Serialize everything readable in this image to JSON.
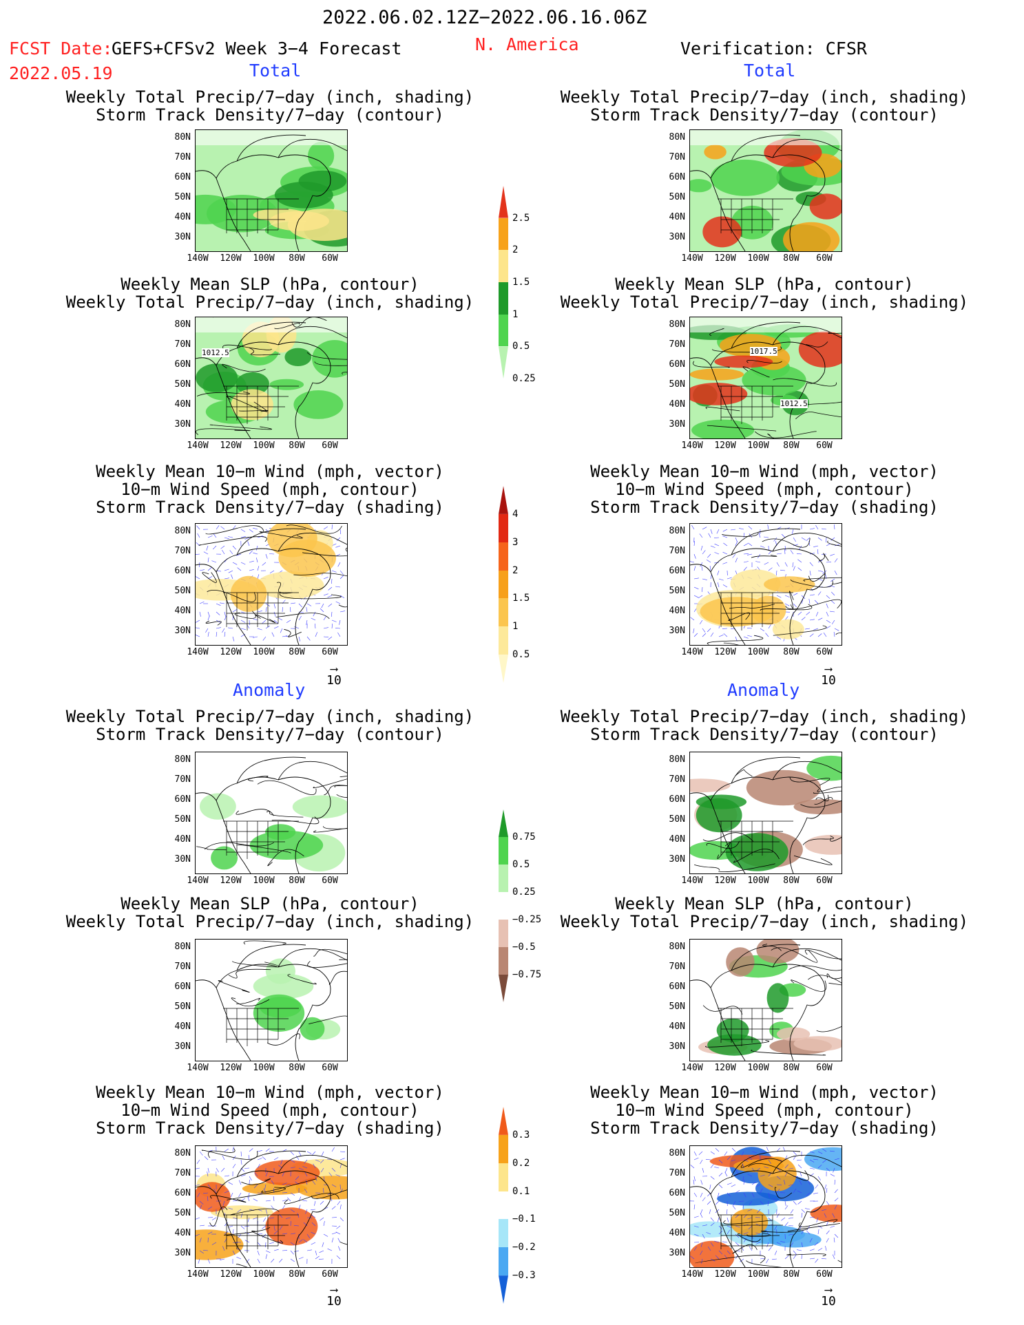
{
  "header": {
    "date_range": "2022.06.02.12Z−2022.06.16.06Z",
    "fcst_date_label": "FCST Date:",
    "fcst_date": "2022.05.19",
    "model_title": "GEFS+CFSv2 Week 3−4 Forecast",
    "region": "N. America",
    "verification": "Verification: CFSR"
  },
  "sections": {
    "total": "Total",
    "anomaly": "Anomaly"
  },
  "titles": {
    "precip_storm": [
      "Weekly Total Precip/7−day (inch, shading)",
      "Storm Track Density/7−day (contour)"
    ],
    "slp_precip": [
      "Weekly Mean SLP (hPa, contour)",
      "Weekly Total Precip/7−day (inch, shading)"
    ],
    "wind": [
      "Weekly Mean 10−m Wind (mph, vector)",
      "10−m Wind Speed (mph, contour)",
      "Storm Track Density/7−day (shading)"
    ]
  },
  "axes": {
    "lat": [
      "80N",
      "70N",
      "60N",
      "50N",
      "40N",
      "30N"
    ],
    "lon": [
      "140W",
      "120W",
      "100W",
      "80W",
      "60W"
    ]
  },
  "contour_labels": {
    "fcst_slp": "1012.5",
    "obs_slp_a": "1017.5",
    "obs_slp_b": "1012.5"
  },
  "vector_ref": "10",
  "colorbars": {
    "total_precip": {
      "labels": [
        "2.5",
        "2",
        "1.5",
        "1",
        "0.5",
        "0.25"
      ],
      "colors": [
        "#e3331c",
        "#f7a21a",
        "#fde58b",
        "#1f9a2a",
        "#4fd44f",
        "#b8f2b0"
      ]
    },
    "total_storm": {
      "labels": [
        "4",
        "3",
        "2",
        "1.5",
        "1",
        "0.5"
      ],
      "colors": [
        "#a8130e",
        "#e22813",
        "#f6641b",
        "#f7a01a",
        "#fbc54e",
        "#fde99a",
        "#fff7c8"
      ]
    },
    "anom_precip": {
      "labels": [
        "0.75",
        "0.5",
        "0.25",
        "−0.25",
        "−0.5",
        "−0.75"
      ],
      "colors": [
        "#1f9a2a",
        "#4fd44f",
        "#b8f2b0",
        "#ffffff",
        "#e7c1b3",
        "#b98672",
        "#7b4b3a"
      ]
    },
    "anom_storm": {
      "labels": [
        "0.3",
        "0.2",
        "0.1",
        "−0.1",
        "−0.2",
        "−0.3"
      ],
      "colors": [
        "#f05a1a",
        "#f7a21a",
        "#fde58b",
        "#ffffff",
        "#a6e6f8",
        "#4aa8f2",
        "#1460d8"
      ]
    }
  }
}
